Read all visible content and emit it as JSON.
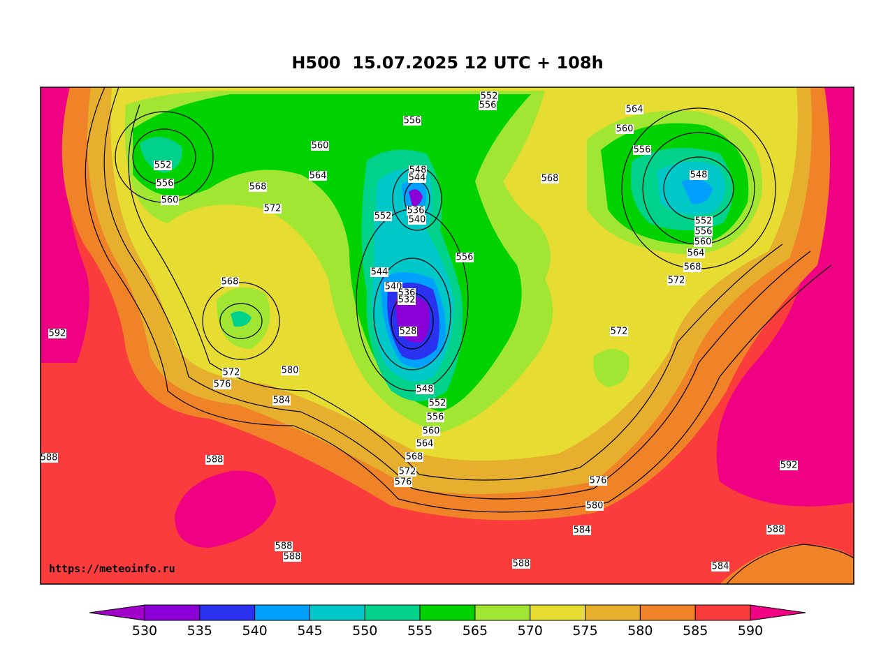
{
  "title": "H500  15.07.2025 12 UTC + 108h",
  "source": "https://meteoinfo.ru",
  "contour_labels": [
    552,
    556,
    560,
    568,
    572,
    564,
    560,
    556,
    552,
    556,
    548,
    544,
    536,
    540,
    552,
    556,
    544,
    540,
    536,
    532,
    528,
    548,
    552,
    556,
    560,
    564,
    568,
    572,
    576,
    568,
    572,
    576,
    580,
    584,
    588,
    588,
    592,
    588,
    588,
    588,
    584,
    580,
    576,
    572,
    572,
    568,
    564,
    560,
    556,
    552,
    548,
    556,
    560,
    564,
    568,
    592,
    588,
    584
  ],
  "colorbar": {
    "ticks": [
      530,
      535,
      540,
      545,
      550,
      555,
      565,
      570,
      575,
      580,
      585,
      590
    ],
    "colors": [
      "#8c00d8",
      "#2a32f0",
      "#00a0ff",
      "#00c8c8",
      "#00d28c",
      "#00d200",
      "#a0e632",
      "#e6dc32",
      "#e6af2d",
      "#f08228",
      "#fa3c3c"
    ],
    "below_color": "#a000c8",
    "above_color": "#f00082"
  }
}
